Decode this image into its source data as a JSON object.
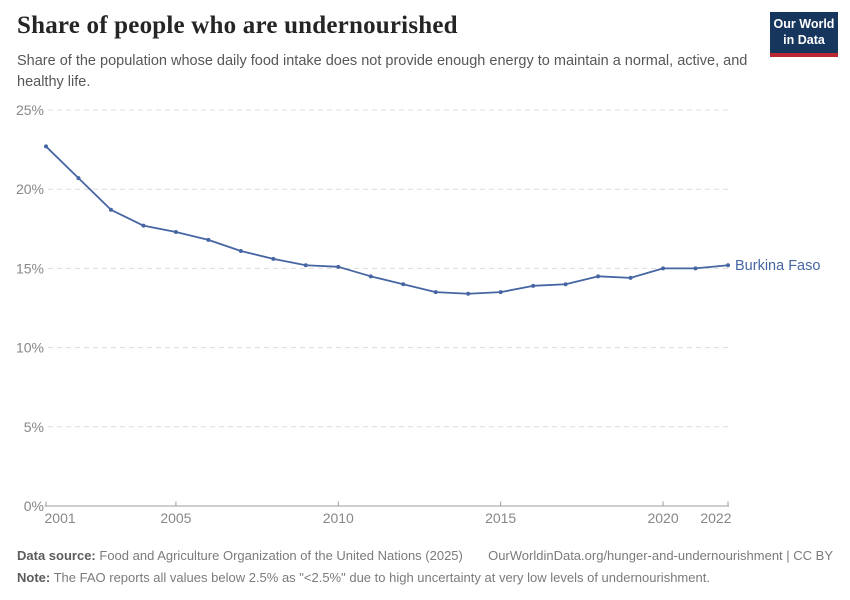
{
  "header": {
    "title": "Share of people who are undernourished",
    "subtitle": "Share of the population whose daily food intake does not provide enough energy to maintain a normal, active, and healthy life.",
    "logo": {
      "line1": "Our World",
      "line2": "in Data",
      "bg_color": "#17365d",
      "accent_color": "#b92734"
    }
  },
  "chart_data": {
    "type": "line",
    "title": "Share of people who are undernourished",
    "x": [
      2001,
      2002,
      2003,
      2004,
      2005,
      2006,
      2007,
      2008,
      2009,
      2010,
      2011,
      2012,
      2013,
      2014,
      2015,
      2016,
      2017,
      2018,
      2019,
      2020,
      2021,
      2022
    ],
    "series": [
      {
        "name": "Burkina Faso",
        "color": "#4666a3",
        "values": [
          22.7,
          20.7,
          18.7,
          17.7,
          17.3,
          16.8,
          16.1,
          15.6,
          15.2,
          15.1,
          14.5,
          14.0,
          13.5,
          13.4,
          13.5,
          13.9,
          14.0,
          14.5,
          14.4,
          15.0,
          15.0,
          15.2
        ]
      }
    ],
    "ylim": [
      0,
      25
    ],
    "yticks": [
      0,
      5,
      10,
      15,
      20,
      25
    ],
    "ytick_suffix": "%",
    "xticks": [
      2001,
      2005,
      2010,
      2015,
      2020,
      2022
    ],
    "grid": "horizontal-dashed",
    "legend_position": "end-of-line",
    "grid_color": "#dcdcdc",
    "axis_color": "#9c9c9c",
    "tick_label_color": "#878787"
  },
  "footer": {
    "data_source_label": "Data source:",
    "data_source": "Food and Agriculture Organization of the United Nations (2025)",
    "attribution": "OurWorldinData.org/hunger-and-undernourishment | CC BY",
    "note_label": "Note:",
    "note": "The FAO reports all values below 2.5% as \"<2.5%\" due to high uncertainty at very low levels of undernourishment."
  }
}
